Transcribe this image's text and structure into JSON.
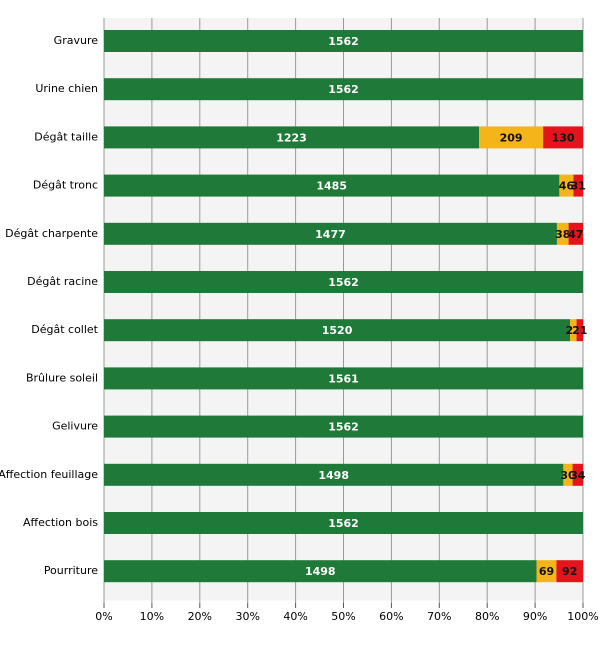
{
  "chart_data": {
    "type": "bar",
    "orientation": "horizontal",
    "stacked": "percent",
    "categories": [
      "Gravure",
      "Urine chien",
      "Dégât taille",
      "Dégât tronc",
      "Dégât charpente",
      "Dégât racine",
      "Dégât collet",
      "Brûlure soleil",
      "Gelivure",
      "Affection feuillage",
      "Affection bois",
      "Pourriture"
    ],
    "series": [
      {
        "color": "#1f7a3a",
        "values": [
          1562,
          1562,
          1223,
          1485,
          1477,
          1562,
          1520,
          1561,
          1562,
          1498,
          1562,
          1498
        ]
      },
      {
        "color": "#f4b41a",
        "values": [
          null,
          null,
          209,
          46,
          38,
          null,
          21,
          null,
          null,
          30,
          null,
          69
        ]
      },
      {
        "color": "#e3141b",
        "values": [
          null,
          null,
          130,
          31,
          47,
          null,
          21,
          null,
          null,
          34,
          null,
          92
        ]
      }
    ],
    "xlim": [
      0,
      100
    ],
    "xticks": [
      {
        "value": 0,
        "label": "0%"
      },
      {
        "value": 10,
        "label": "10%"
      },
      {
        "value": 20,
        "label": "20%"
      },
      {
        "value": 30,
        "label": "30%"
      },
      {
        "value": 40,
        "label": "40%"
      },
      {
        "value": 50,
        "label": "50%"
      },
      {
        "value": 60,
        "label": "60%"
      },
      {
        "value": 70,
        "label": "70%"
      },
      {
        "value": 80,
        "label": "80%"
      },
      {
        "value": 90,
        "label": "90%"
      },
      {
        "value": 100,
        "label": "100%"
      }
    ],
    "grid": true
  }
}
